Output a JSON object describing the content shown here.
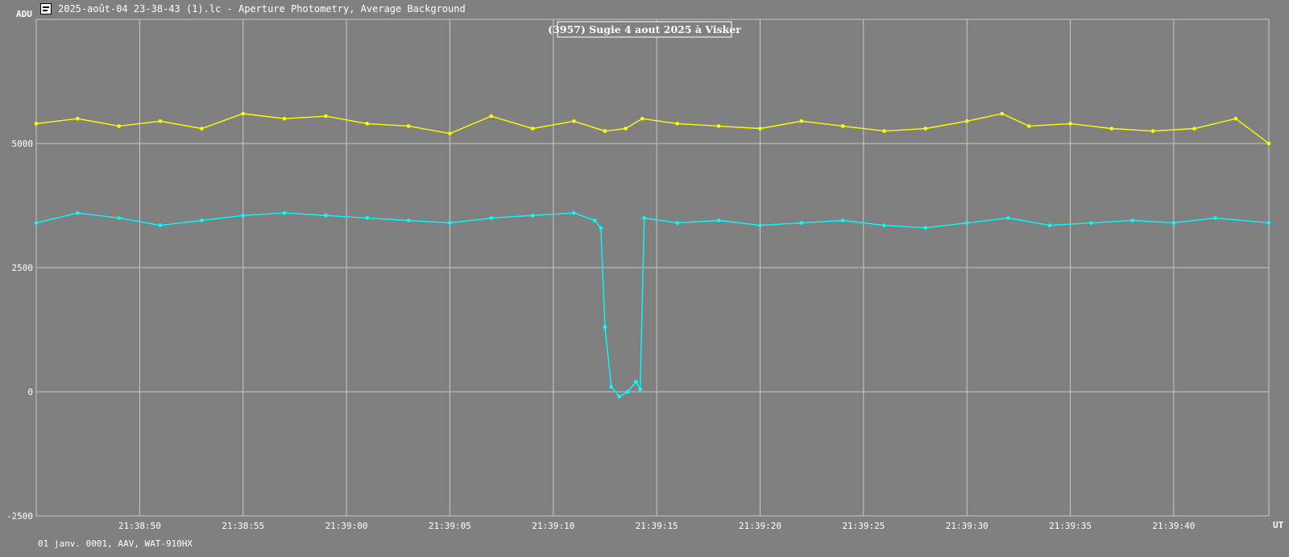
{
  "window": {
    "title": "2025-août-04 23-38-43 (1).lc - Aperture Photometry, Average Background",
    "icon": "lightcurve-app-icon"
  },
  "footer": {
    "text": "01 janv. 0001, AAV, WAT-910HX"
  },
  "colors": {
    "background": "#808080",
    "grid": "#c8c8c8",
    "target_series": "#00ffff",
    "comparison_series": "#ffff00",
    "text": "#ffffff"
  },
  "chart_data": {
    "type": "line",
    "title": "(3957) Sugie 4 aout 2025 à Visker",
    "ylabel": "ADU",
    "xlabel": "UT",
    "ylim": [
      -2500,
      7500
    ],
    "y_ticks": [
      "-2500",
      "0",
      "2500",
      "5000"
    ],
    "y_tick_values": [
      -2500,
      0,
      2500,
      5000
    ],
    "x_ticks": [
      "21:38:50",
      "21:38:55",
      "21:39:00",
      "21:39:05",
      "21:39:10",
      "21:39:15",
      "21:39:20",
      "21:39:25",
      "21:39:30",
      "21:39:35",
      "21:39:40"
    ],
    "x_range": [
      "21:38:45.0",
      "21:39:44.6"
    ],
    "grid": true,
    "markers": true,
    "series": [
      {
        "color": "#ffff00",
        "x": [
          "21:38:45.0",
          "21:38:47.0",
          "21:38:49.0",
          "21:38:51.0",
          "21:38:53.0",
          "21:38:55.0",
          "21:38:57.0",
          "21:38:59.0",
          "21:39:01.0",
          "21:39:03.0",
          "21:39:05.0",
          "21:39:07.0",
          "21:39:09.0",
          "21:39:11.0",
          "21:39:12.5",
          "21:39:13.5",
          "21:39:14.3",
          "21:39:16.0",
          "21:39:18.0",
          "21:39:20.0",
          "21:39:22.0",
          "21:39:24.0",
          "21:39:26.0",
          "21:39:28.0",
          "21:39:30.0",
          "21:39:31.7",
          "21:39:33.0",
          "21:39:35.0",
          "21:39:37.0",
          "21:39:39.0",
          "21:39:41.0",
          "21:39:43.0",
          "21:39:44.6"
        ],
        "values": [
          5400,
          5500,
          5350,
          5450,
          5300,
          5600,
          5500,
          5550,
          5400,
          5350,
          5200,
          5550,
          5300,
          5450,
          5250,
          5300,
          5500,
          5400,
          5350,
          5300,
          5450,
          5350,
          5250,
          5300,
          5450,
          5600,
          5350,
          5400,
          5300,
          5250,
          5300,
          5500,
          5000
        ]
      },
      {
        "color": "#00ffff",
        "x": [
          "21:38:45.0",
          "21:38:47.0",
          "21:38:49.0",
          "21:38:51.0",
          "21:38:53.0",
          "21:38:55.0",
          "21:38:57.0",
          "21:38:59.0",
          "21:39:01.0",
          "21:39:03.0",
          "21:39:05.0",
          "21:39:07.0",
          "21:39:09.0",
          "21:39:11.0",
          "21:39:12.0",
          "21:39:12.3",
          "21:39:12.5",
          "21:39:12.8",
          "21:39:13.2",
          "21:39:13.6",
          "21:39:14.0",
          "21:39:14.2",
          "21:39:14.4",
          "21:39:16.0",
          "21:39:18.0",
          "21:39:20.0",
          "21:39:22.0",
          "21:39:24.0",
          "21:39:26.0",
          "21:39:28.0",
          "21:39:30.0",
          "21:39:32.0",
          "21:39:34.0",
          "21:39:36.0",
          "21:39:38.0",
          "21:39:40.0",
          "21:39:42.0",
          "21:39:44.6"
        ],
        "values": [
          3400,
          3600,
          3500,
          3350,
          3450,
          3550,
          3600,
          3550,
          3500,
          3450,
          3400,
          3500,
          3550,
          3600,
          3450,
          3300,
          1300,
          100,
          -100,
          0,
          200,
          50,
          3500,
          3400,
          3450,
          3350,
          3400,
          3450,
          3350,
          3300,
          3400,
          3500,
          3350,
          3400,
          3450,
          3400,
          3500,
          3400
        ]
      }
    ]
  }
}
